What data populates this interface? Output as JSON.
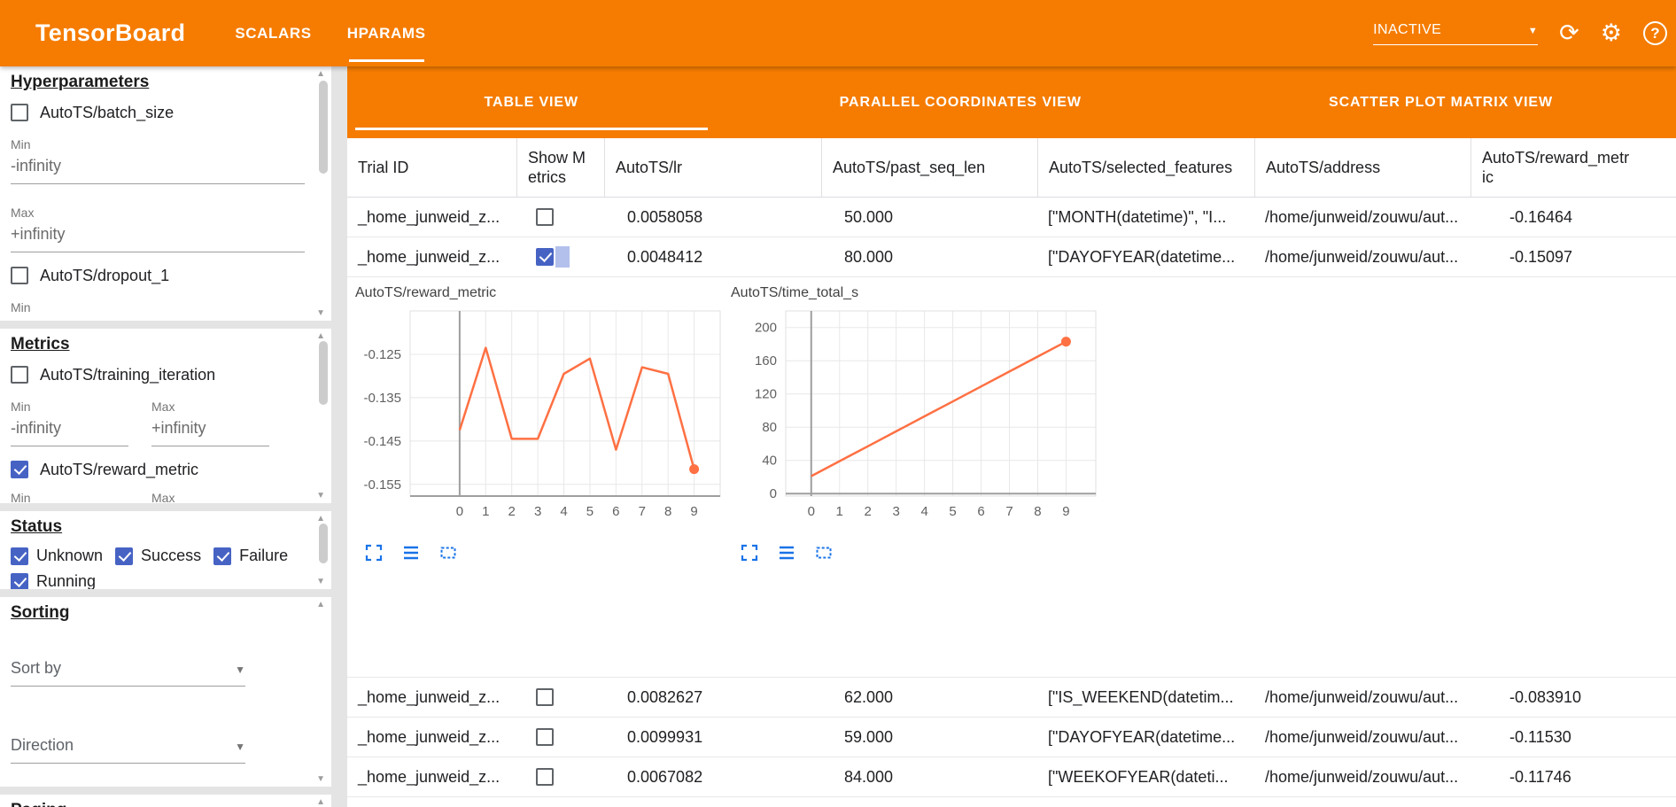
{
  "colors": {
    "header_bg": "#f57c00",
    "line_orange": "#ff7043",
    "checkbox_blue": "#4663c4",
    "icon_blue": "#1a73e8"
  },
  "header": {
    "title": "TensorBoard",
    "nav_tabs": [
      {
        "label": "SCALARS",
        "active": false
      },
      {
        "label": "HPARAMS",
        "active": true
      }
    ],
    "reload_value": "INACTIVE",
    "icons": [
      "refresh-icon",
      "settings-icon",
      "help-icon"
    ]
  },
  "sidebar": {
    "hyperparameters": {
      "heading": "Hyperparameters",
      "items": [
        {
          "label": "AutoTS/batch_size",
          "checked": false,
          "min_label": "Min",
          "min_value": "-infinity",
          "max_label": "Max",
          "max_value": "+infinity"
        },
        {
          "label": "AutoTS/dropout_1",
          "checked": false,
          "min_label": "Min"
        }
      ]
    },
    "metrics": {
      "heading": "Metrics",
      "items": [
        {
          "label": "AutoTS/training_iteration",
          "checked": false,
          "min_label": "Min",
          "min_value": "-infinity",
          "max_label": "Max",
          "max_value": "+infinity"
        },
        {
          "label": "AutoTS/reward_metric",
          "checked": true,
          "min_label": "Min",
          "max_label": "Max"
        }
      ]
    },
    "status": {
      "heading": "Status",
      "options": [
        {
          "label": "Unknown",
          "checked": true
        },
        {
          "label": "Success",
          "checked": true
        },
        {
          "label": "Failure",
          "checked": true
        },
        {
          "label": "Running",
          "checked": true
        }
      ]
    },
    "sorting": {
      "heading": "Sorting",
      "sort_by_label": "Sort by",
      "direction_label": "Direction"
    },
    "paging": {
      "heading": "Paging"
    }
  },
  "main": {
    "view_tabs": [
      {
        "label": "TABLE VIEW",
        "active": true
      },
      {
        "label": "PARALLEL COORDINATES VIEW",
        "active": false
      },
      {
        "label": "SCATTER PLOT MATRIX VIEW",
        "active": false
      }
    ],
    "chart_tools": [
      "fullscreen-icon",
      "show-data-icon",
      "fit-domain-icon"
    ],
    "table": {
      "columns": [
        "Trial ID",
        "Show Metrics",
        "AutoTS/lr",
        "AutoTS/past_seq_len",
        "AutoTS/selected_features",
        "AutoTS/address",
        "AutoTS/reward_metric"
      ],
      "rows": [
        {
          "trial_id": "_home_junweid_z...",
          "show_metrics": false,
          "lr": "0.0058058",
          "past_seq_len": "50.000",
          "selected_features": "[\"MONTH(datetime)\", \"I...",
          "address": "/home/junweid/zouwu/aut...",
          "reward_metric": "-0.16464"
        },
        {
          "trial_id": "_home_junweid_z...",
          "show_metrics": true,
          "lr": "0.0048412",
          "past_seq_len": "80.000",
          "selected_features": "[\"DAYOFYEAR(datetime...",
          "address": "/home/junweid/zouwu/aut...",
          "reward_metric": "-0.15097"
        },
        {
          "trial_id": "_home_junweid_z...",
          "show_metrics": false,
          "lr": "0.0082627",
          "past_seq_len": "62.000",
          "selected_features": "[\"IS_WEEKEND(datetim...",
          "address": "/home/junweid/zouwu/aut...",
          "reward_metric": "-0.083910"
        },
        {
          "trial_id": "_home_junweid_z...",
          "show_metrics": false,
          "lr": "0.0099931",
          "past_seq_len": "59.000",
          "selected_features": "[\"DAYOFYEAR(datetime...",
          "address": "/home/junweid/zouwu/aut...",
          "reward_metric": "-0.11530"
        },
        {
          "trial_id": "_home_junweid_z...",
          "show_metrics": false,
          "lr": "0.0067082",
          "past_seq_len": "84.000",
          "selected_features": "[\"WEEKOFYEAR(dateti...",
          "address": "/home/junweid/zouwu/aut...",
          "reward_metric": "-0.11746"
        }
      ]
    }
  },
  "chart_data": [
    {
      "type": "line",
      "title": "AutoTS/reward_metric",
      "x": [
        0,
        1,
        2,
        3,
        4,
        5,
        6,
        7,
        8,
        9
      ],
      "values": [
        -0.1425,
        -0.1235,
        -0.1445,
        -0.1445,
        -0.1295,
        -0.126,
        -0.147,
        -0.128,
        -0.1295,
        -0.1515
      ],
      "xticks": [
        0,
        1,
        2,
        3,
        4,
        5,
        6,
        7,
        8,
        9
      ],
      "yticks": [
        -0.125,
        -0.135,
        -0.145,
        -0.155
      ],
      "xlim": [
        -1.9,
        10.0
      ],
      "ylim": [
        -0.1577,
        -0.115
      ],
      "baseline": -0.1577,
      "end_dot": true,
      "grid": true,
      "legend": "none"
    },
    {
      "type": "line",
      "title": "AutoTS/time_total_s",
      "x": [
        0,
        1,
        2,
        3,
        4,
        5,
        6,
        7,
        8,
        9
      ],
      "values": [
        21,
        39,
        57,
        75,
        93,
        111,
        129,
        147,
        165,
        183
      ],
      "xticks": [
        0,
        1,
        2,
        3,
        4,
        5,
        6,
        7,
        8,
        9
      ],
      "yticks": [
        0,
        40,
        80,
        120,
        160,
        200
      ],
      "xlim": [
        -0.9,
        10.05
      ],
      "ylim": [
        -3,
        220
      ],
      "baseline": 0,
      "end_dot": true,
      "grid": true,
      "legend": "none"
    }
  ]
}
